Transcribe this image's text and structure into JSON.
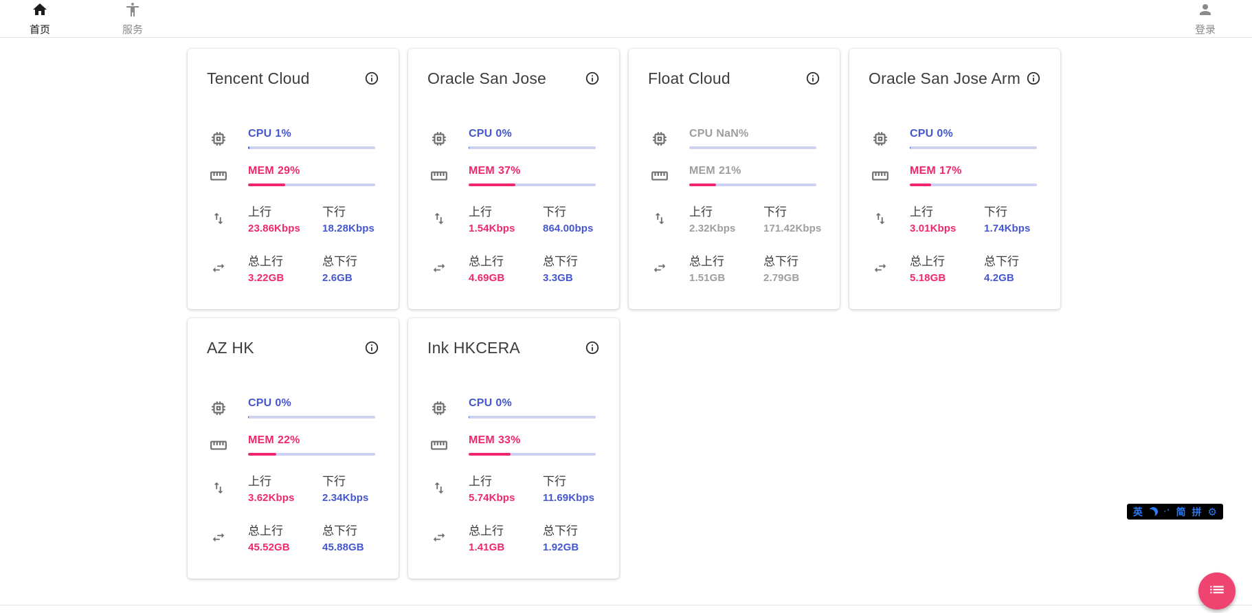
{
  "nav": {
    "items": [
      {
        "id": "home",
        "label": "首页",
        "icon": "home-icon",
        "active": true
      },
      {
        "id": "services",
        "label": "服务",
        "icon": "accessibility-icon",
        "active": false
      }
    ],
    "login": {
      "label": "登录",
      "icon": "person-icon"
    }
  },
  "labels": {
    "cpu": "CPU",
    "mem": "MEM",
    "up": "上行",
    "down": "下行",
    "total_up": "总上行",
    "total_down": "总下行"
  },
  "servers": [
    {
      "name": "Tencent Cloud",
      "cpu": "1%",
      "cpu_pct": 1,
      "mem": "29%",
      "mem_pct": 29,
      "up": "23.86Kbps",
      "down": "18.28Kbps",
      "total_up": "3.22GB",
      "total_down": "2.6GB",
      "muted": false
    },
    {
      "name": "Oracle San Jose",
      "cpu": "0%",
      "cpu_pct": 0,
      "mem": "37%",
      "mem_pct": 37,
      "up": "1.54Kbps",
      "down": "864.00bps",
      "total_up": "4.69GB",
      "total_down": "3.3GB",
      "muted": false
    },
    {
      "name": "Float Cloud",
      "cpu": "NaN%",
      "cpu_pct": null,
      "mem": "21%",
      "mem_pct": 21,
      "up": "2.32Kbps",
      "down": "171.42Kbps",
      "total_up": "1.51GB",
      "total_down": "2.79GB",
      "muted": true
    },
    {
      "name": "Oracle San Jose Arm",
      "cpu": "0%",
      "cpu_pct": 0,
      "mem": "17%",
      "mem_pct": 17,
      "up": "3.01Kbps",
      "down": "1.74Kbps",
      "total_up": "5.18GB",
      "total_down": "4.2GB",
      "muted": false
    },
    {
      "name": "AZ HK",
      "cpu": "0%",
      "cpu_pct": 0,
      "mem": "22%",
      "mem_pct": 22,
      "up": "3.62Kbps",
      "down": "2.34Kbps",
      "total_up": "45.52GB",
      "total_down": "45.88GB",
      "muted": false
    },
    {
      "name": "Ink HKCERA",
      "cpu": "0%",
      "cpu_pct": 0,
      "mem": "33%",
      "mem_pct": 33,
      "up": "5.74Kbps",
      "down": "11.69Kbps",
      "total_up": "1.41GB",
      "total_down": "1.92GB",
      "muted": false
    }
  ],
  "ime": {
    "lang": "英",
    "moon": "moon-icon",
    "punct": "·’",
    "simplified": "简",
    "pinyin": "拼",
    "gear": "⚙"
  },
  "fab": {
    "icon": "list-icon"
  },
  "colors": {
    "blue": "#4456d0",
    "pink": "#f0276e",
    "track": "#cdd2f2",
    "muted": "#9e9e9e",
    "fab": "#ef446f",
    "imeblue": "#2a7bf6"
  }
}
